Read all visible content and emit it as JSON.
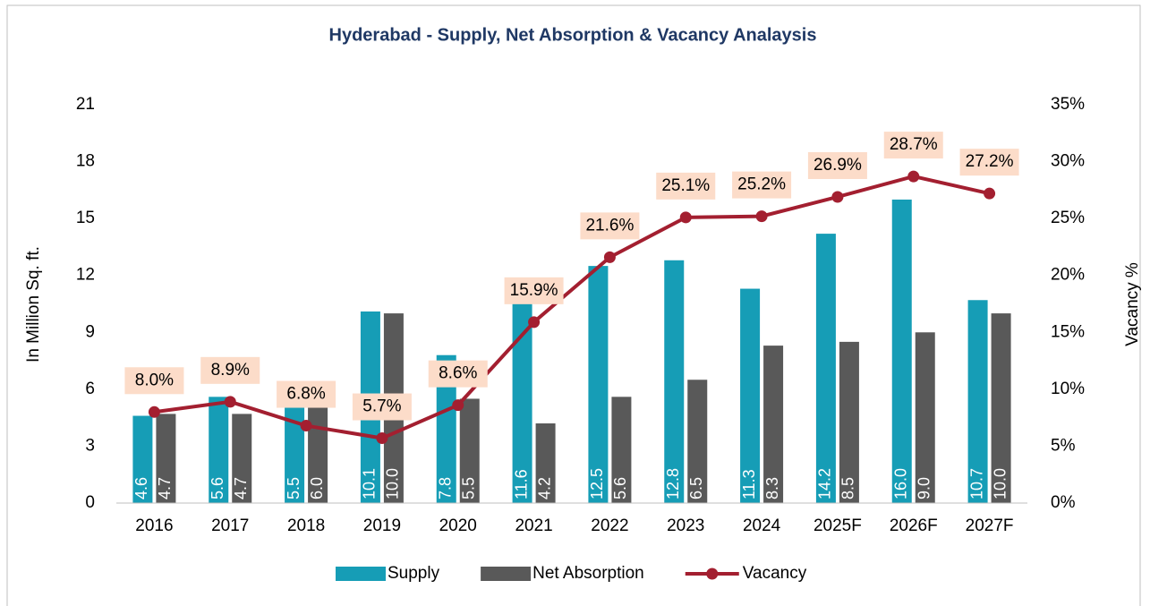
{
  "chart_data": {
    "type": "bar_line",
    "title": "Hyderabad - Supply, Net Absorption & Vacancy Analaysis",
    "y_label": "In Million Sq. ft.",
    "y2_label": "Vacancy %",
    "categories": [
      "2016",
      "2017",
      "2018",
      "2019",
      "2020",
      "2021",
      "2022",
      "2023",
      "2024",
      "2025F",
      "2026F",
      "2027F"
    ],
    "series": [
      {
        "name": "Supply",
        "type": "bar",
        "color": "#169db6",
        "values": [
          4.6,
          5.6,
          5.5,
          10.1,
          7.8,
          11.6,
          12.5,
          12.8,
          11.3,
          14.2,
          16.0,
          10.7
        ],
        "value_labels": [
          "4.6",
          "5.6",
          "5.5",
          "10.1",
          "7.8",
          "11.6",
          "12.5",
          "12.8",
          "11.3",
          "14.2",
          "16.0",
          "10.7"
        ]
      },
      {
        "name": "Net Absorption",
        "type": "bar",
        "color": "#595959",
        "values": [
          4.7,
          4.7,
          6.0,
          10.0,
          5.5,
          4.2,
          5.6,
          6.5,
          8.3,
          8.5,
          9.0,
          10.0
        ],
        "value_labels": [
          "4.7",
          "4.7",
          "6.0",
          "10.0",
          "5.5",
          "4.2",
          "5.6",
          "6.5",
          "8.3",
          "8.5",
          "9.0",
          "10.0"
        ]
      },
      {
        "name": "Vacancy",
        "type": "line",
        "axis": "y2",
        "color": "#a31f30",
        "values": [
          8.0,
          8.9,
          6.8,
          5.7,
          8.6,
          15.9,
          21.6,
          25.1,
          25.2,
          26.9,
          28.7,
          27.2
        ],
        "value_labels": [
          "8.0%",
          "8.9%",
          "6.8%",
          "5.7%",
          "8.6%",
          "15.9%",
          "21.6%",
          "25.1%",
          "25.2%",
          "26.9%",
          "28.7%",
          "27.2%"
        ]
      }
    ],
    "ylim": [
      0,
      21
    ],
    "yticks": [
      0,
      3,
      6,
      9,
      12,
      15,
      18,
      21
    ],
    "y2lim": [
      0,
      35
    ],
    "y2ticks": [
      {
        "value": 0,
        "label": "0%"
      },
      {
        "value": 5,
        "label": "5%"
      },
      {
        "value": 10,
        "label": "10%"
      },
      {
        "value": 15,
        "label": "15%"
      },
      {
        "value": 20,
        "label": "20%"
      },
      {
        "value": 25,
        "label": "25%"
      },
      {
        "value": 30,
        "label": "30%"
      },
      {
        "value": 35,
        "label": "35%"
      }
    ],
    "legend": "bottom",
    "grid": false
  }
}
